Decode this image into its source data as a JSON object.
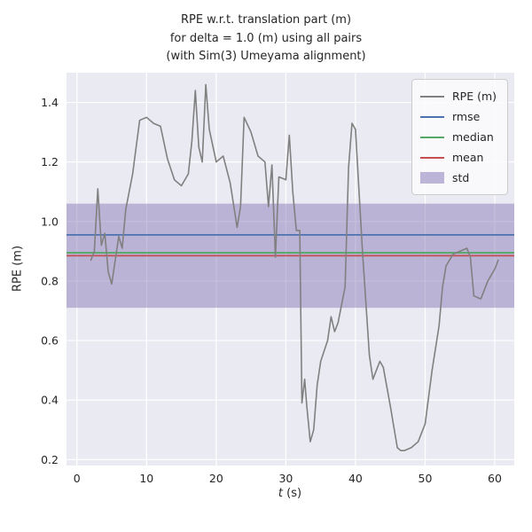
{
  "chart_data": {
    "type": "line",
    "title_lines": [
      "RPE w.r.t. translation part (m)",
      "for delta = 1.0 (m) using all pairs",
      "(with Sim(3) Umeyama alignment)"
    ],
    "xlabel": {
      "var": "t",
      "unit": " (s)"
    },
    "ylabel": "RPE (m)",
    "xlim": [
      -1.5,
      62.8
    ],
    "ylim": [
      0.18,
      1.5
    ],
    "xticks": [
      0,
      10,
      20,
      30,
      40,
      50,
      60
    ],
    "xtick_labels": [
      "0",
      "10",
      "20",
      "30",
      "40",
      "50",
      "60"
    ],
    "yticks": [
      0.2,
      0.4,
      0.6,
      0.8,
      1.0,
      1.2,
      1.4
    ],
    "ytick_labels": [
      "0.2",
      "0.4",
      "0.6",
      "0.8",
      "1.0",
      "1.2",
      "1.4"
    ],
    "grid": true,
    "legend_position": "upper right",
    "series": [
      {
        "name": "RPE (m)",
        "color": "#808080",
        "x": [
          2,
          2.5,
          3,
          3.5,
          4,
          4.5,
          5,
          5.5,
          6,
          6.5,
          7,
          8,
          9,
          10,
          11,
          12,
          13,
          14,
          15,
          16,
          16.5,
          17,
          17.5,
          18,
          18.5,
          19,
          20,
          21,
          22,
          23,
          23.5,
          24,
          25,
          26,
          27,
          27.5,
          28,
          28.5,
          29,
          30,
          30.5,
          31,
          31.5,
          32,
          32.3,
          32.7,
          33,
          33.5,
          34,
          34.5,
          35,
          36,
          36.5,
          37,
          37.5,
          38,
          38.5,
          39,
          39.5,
          40,
          41,
          42,
          42.5,
          43,
          43.5,
          44,
          45,
          46,
          46.5,
          47,
          48,
          49,
          50,
          51,
          52,
          52.5,
          53,
          54,
          55,
          56,
          56.5,
          57,
          58,
          59,
          60,
          60.5
        ],
        "y": [
          0.87,
          0.9,
          1.11,
          0.92,
          0.96,
          0.83,
          0.79,
          0.87,
          0.95,
          0.91,
          1.04,
          1.16,
          1.34,
          1.35,
          1.33,
          1.32,
          1.21,
          1.14,
          1.12,
          1.16,
          1.27,
          1.44,
          1.25,
          1.2,
          1.46,
          1.31,
          1.2,
          1.22,
          1.13,
          0.98,
          1.05,
          1.35,
          1.3,
          1.22,
          1.2,
          1.05,
          1.19,
          0.88,
          1.15,
          1.14,
          1.29,
          1.1,
          0.97,
          0.97,
          0.39,
          0.47,
          0.38,
          0.26,
          0.3,
          0.45,
          0.53,
          0.6,
          0.68,
          0.63,
          0.66,
          0.72,
          0.78,
          1.18,
          1.33,
          1.31,
          0.9,
          0.55,
          0.47,
          0.5,
          0.53,
          0.51,
          0.38,
          0.24,
          0.23,
          0.23,
          0.24,
          0.26,
          0.32,
          0.5,
          0.65,
          0.78,
          0.85,
          0.89,
          0.9,
          0.91,
          0.88,
          0.75,
          0.74,
          0.8,
          0.84,
          0.87
        ]
      }
    ],
    "stat_lines": [
      {
        "name": "rmse",
        "value": 0.955,
        "color": "#4c72b0"
      },
      {
        "name": "median",
        "value": 0.895,
        "color": "#55a868"
      },
      {
        "name": "mean",
        "value": 0.885,
        "color": "#c44e52"
      }
    ],
    "std_band": {
      "name": "std",
      "low": 0.71,
      "high": 1.06,
      "color": "#8172b2",
      "opacity": 0.45
    },
    "legend": [
      {
        "label": "RPE (m)",
        "type": "line",
        "color": "#808080"
      },
      {
        "label": "rmse",
        "type": "line",
        "color": "#4c72b0"
      },
      {
        "label": "median",
        "type": "line",
        "color": "#55a868"
      },
      {
        "label": "mean",
        "type": "line",
        "color": "#c44e52"
      },
      {
        "label": "std",
        "type": "patch",
        "color": "#8172b2"
      }
    ],
    "colors": {
      "figure_bg": "#ffffff",
      "plot_bg": "#eaeaf2",
      "grid": "#ffffff",
      "text": "#262626"
    }
  }
}
